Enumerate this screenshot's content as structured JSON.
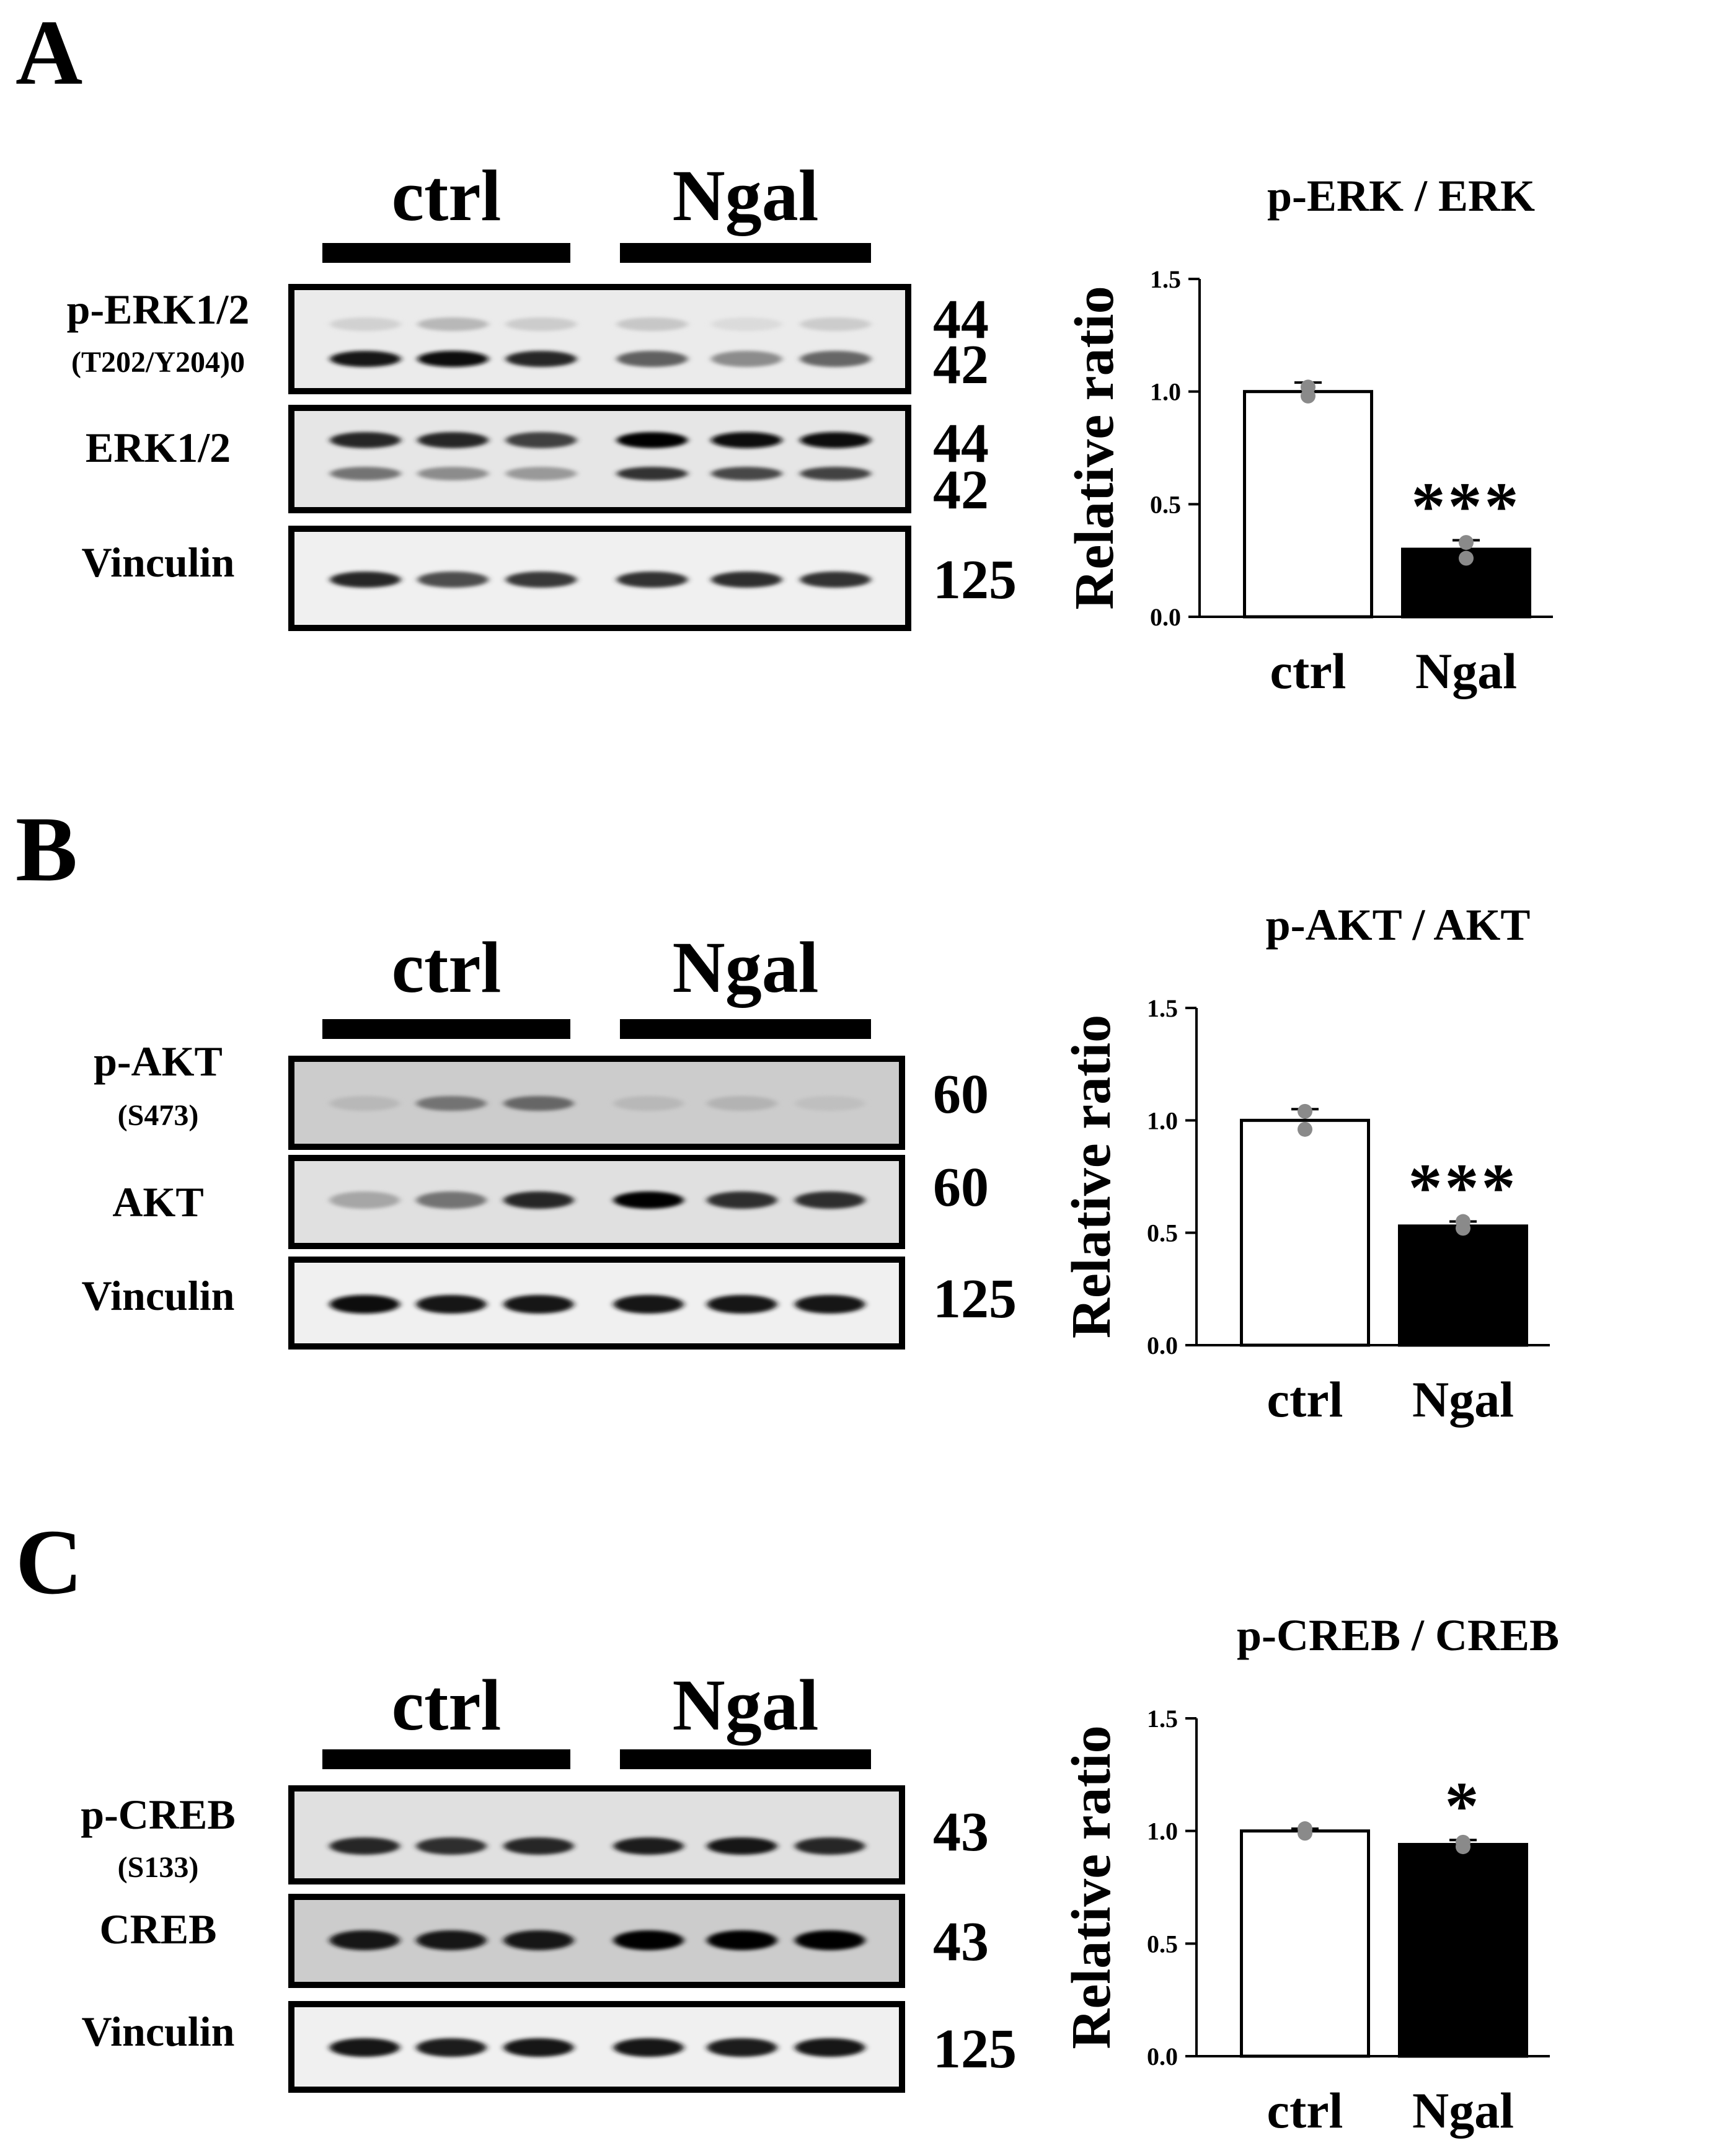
{
  "panels": [
    {
      "letter": "A",
      "groups": [
        "ctrl",
        "Ngal"
      ],
      "blots": [
        {
          "label": [
            "p-ERK1/2",
            "(T202/Y204)0"
          ],
          "mw": [
            "44",
            "42"
          ],
          "bands": "double"
        },
        {
          "label": [
            "ERK1/2"
          ],
          "mw": [
            "44",
            "42"
          ],
          "bands": "double"
        },
        {
          "label": [
            "Vinculin"
          ],
          "mw": [
            "125"
          ],
          "bands": "single"
        }
      ],
      "band_intensity": [
        [
          [
            0.18,
            0.28,
            0.2,
            0.22,
            0.14,
            0.2
          ],
          [
            0.9,
            0.95,
            0.85,
            0.62,
            0.45,
            0.6
          ]
        ],
        [
          [
            0.85,
            0.85,
            0.75,
            0.98,
            0.96,
            0.96
          ],
          [
            0.55,
            0.45,
            0.4,
            0.8,
            0.72,
            0.74
          ]
        ],
        [
          [
            0.85,
            0.7,
            0.78,
            0.8,
            0.82,
            0.8
          ]
        ]
      ],
      "membrane_tone": [
        0.08,
        0.1,
        0.06
      ]
    },
    {
      "letter": "B",
      "groups": [
        "ctrl",
        "Ngal"
      ],
      "blots": [
        {
          "label": [
            "p-AKT",
            "(S473)"
          ],
          "mw": [
            "60"
          ],
          "bands": "single"
        },
        {
          "label": [
            "AKT"
          ],
          "mw": [
            "60"
          ],
          "bands": "single"
        },
        {
          "label": [
            "Vinculin"
          ],
          "mw": [
            "125"
          ],
          "bands": "single"
        }
      ],
      "band_intensity": [
        [
          [
            0.28,
            0.55,
            0.6,
            0.28,
            0.3,
            0.25
          ]
        ],
        [
          [
            0.35,
            0.55,
            0.85,
            0.98,
            0.82,
            0.82
          ]
        ],
        [
          [
            0.95,
            0.9,
            0.92,
            0.92,
            0.9,
            0.9
          ]
        ]
      ],
      "membrane_tone": [
        0.2,
        0.12,
        0.06
      ]
    },
    {
      "letter": "C",
      "groups": [
        "ctrl",
        "Ngal"
      ],
      "blots": [
        {
          "label": [
            "p-CREB",
            "(S133)"
          ],
          "mw": [
            "43"
          ],
          "bands": "single"
        },
        {
          "label": [
            "CREB"
          ],
          "mw": [
            "43"
          ],
          "bands": "single"
        },
        {
          "label": [
            "Vinculin"
          ],
          "mw": [
            "125"
          ],
          "bands": "single"
        }
      ],
      "band_intensity": [
        [
          [
            0.85,
            0.82,
            0.85,
            0.88,
            0.9,
            0.85
          ]
        ],
        [
          [
            0.9,
            0.9,
            0.92,
            0.98,
            0.98,
            0.98
          ]
        ],
        [
          [
            0.92,
            0.88,
            0.92,
            0.92,
            0.88,
            0.9
          ]
        ]
      ],
      "membrane_tone": [
        0.12,
        0.2,
        0.06
      ]
    }
  ],
  "chart_data": [
    {
      "type": "bar",
      "title": "p-ERK / ERK",
      "ylabel": "Relative ratio",
      "categories": [
        "ctrl",
        "Ngal"
      ],
      "values": [
        1.0,
        0.3
      ],
      "errors": [
        0.04,
        0.04
      ],
      "points": [
        [
          1.02,
          0.98
        ],
        [
          0.33,
          0.26
        ]
      ],
      "significance": [
        "",
        "***"
      ],
      "yticks": [
        "0.0",
        "0.5",
        "1.0",
        "1.5"
      ],
      "ylim": [
        0,
        1.5
      ],
      "bar_colors": [
        "#ffffff",
        "#000000"
      ]
    },
    {
      "type": "bar",
      "title": "p-AKT / AKT",
      "ylabel": "Relative ratio",
      "categories": [
        "ctrl",
        "Ngal"
      ],
      "values": [
        1.0,
        0.53
      ],
      "errors": [
        0.05,
        0.02
      ],
      "points": [
        [
          1.04,
          0.96
        ],
        [
          0.55,
          0.52
        ]
      ],
      "significance": [
        "",
        "***"
      ],
      "yticks": [
        "0.0",
        "0.5",
        "1.0",
        "1.5"
      ],
      "ylim": [
        0,
        1.5
      ],
      "bar_colors": [
        "#ffffff",
        "#000000"
      ]
    },
    {
      "type": "bar",
      "title": "p-CREB / CREB",
      "ylabel": "Relative ratio",
      "categories": [
        "ctrl",
        "Ngal"
      ],
      "values": [
        1.0,
        0.94
      ],
      "errors": [
        0.01,
        0.02
      ],
      "points": [
        [
          1.01,
          0.99
        ],
        [
          0.95,
          0.93
        ]
      ],
      "significance": [
        "",
        "*"
      ],
      "yticks": [
        "0.0",
        "0.5",
        "1.0",
        "1.5"
      ],
      "ylim": [
        0,
        1.5
      ],
      "bar_colors": [
        "#ffffff",
        "#000000"
      ]
    }
  ]
}
